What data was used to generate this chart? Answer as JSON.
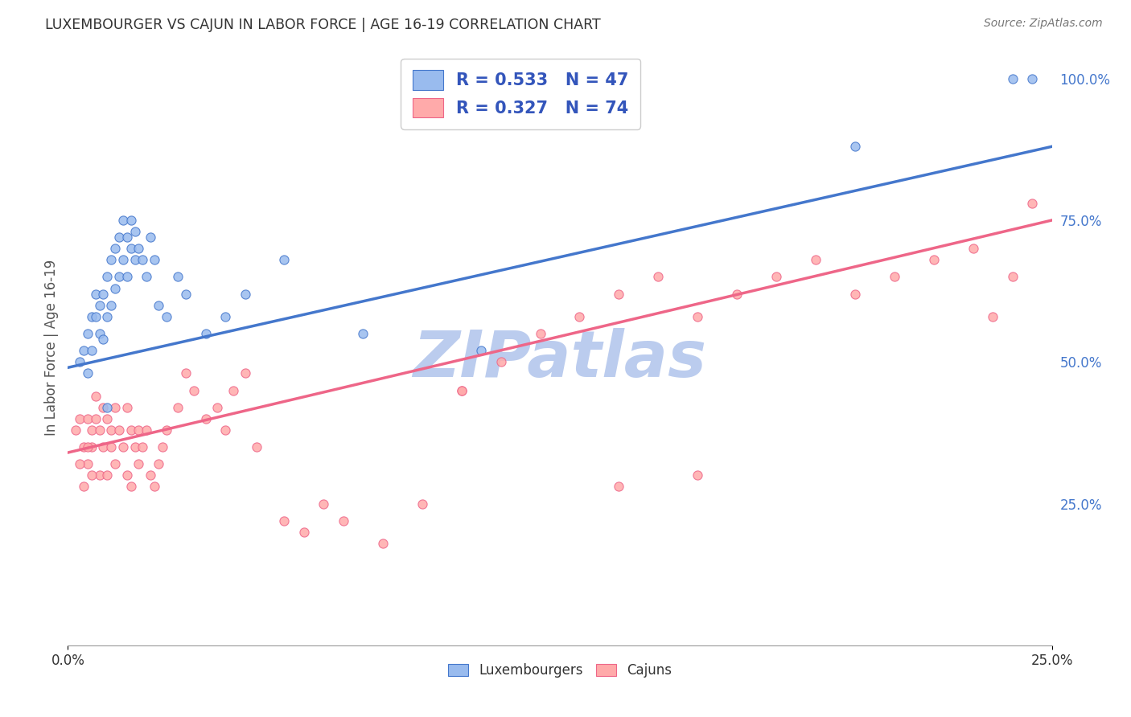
{
  "title": "LUXEMBOURGER VS CAJUN IN LABOR FORCE | AGE 16-19 CORRELATION CHART",
  "source": "Source: ZipAtlas.com",
  "ylabel": "In Labor Force | Age 16-19",
  "xlim": [
    0.0,
    0.25
  ],
  "ylim": [
    0.0,
    1.05
  ],
  "y_ticks_right": [
    0.25,
    0.5,
    0.75,
    1.0
  ],
  "y_tick_labels_right": [
    "25.0%",
    "50.0%",
    "75.0%",
    "100.0%"
  ],
  "blue_R": 0.533,
  "blue_N": 47,
  "pink_R": 0.327,
  "pink_N": 74,
  "blue_color": "#99BBEE",
  "pink_color": "#FFAAAA",
  "blue_line_color": "#4477CC",
  "pink_line_color": "#EE6688",
  "watermark": "ZIPatlas",
  "watermark_color": "#BBCCEE",
  "background_color": "#FFFFFF",
  "grid_color": "#DDDDDD",
  "title_color": "#333333",
  "axis_label_color": "#555555",
  "legend_text_color": "#3355BB",
  "blue_line_intercept": 0.49,
  "blue_line_slope": 1.56,
  "pink_line_intercept": 0.34,
  "pink_line_slope": 1.64,
  "blue_scatter_x": [
    0.003,
    0.004,
    0.005,
    0.005,
    0.006,
    0.006,
    0.007,
    0.007,
    0.008,
    0.008,
    0.009,
    0.009,
    0.01,
    0.01,
    0.011,
    0.011,
    0.012,
    0.012,
    0.013,
    0.013,
    0.014,
    0.014,
    0.015,
    0.015,
    0.016,
    0.016,
    0.017,
    0.017,
    0.018,
    0.019,
    0.02,
    0.021,
    0.022,
    0.023,
    0.025,
    0.028,
    0.03,
    0.035,
    0.04,
    0.045,
    0.055,
    0.075,
    0.105,
    0.2,
    0.24,
    0.245,
    0.01
  ],
  "blue_scatter_y": [
    0.5,
    0.52,
    0.48,
    0.55,
    0.52,
    0.58,
    0.58,
    0.62,
    0.55,
    0.6,
    0.54,
    0.62,
    0.58,
    0.65,
    0.6,
    0.68,
    0.63,
    0.7,
    0.65,
    0.72,
    0.68,
    0.75,
    0.72,
    0.65,
    0.7,
    0.75,
    0.68,
    0.73,
    0.7,
    0.68,
    0.65,
    0.72,
    0.68,
    0.6,
    0.58,
    0.65,
    0.62,
    0.55,
    0.58,
    0.62,
    0.68,
    0.55,
    0.52,
    0.88,
    1.0,
    1.0,
    0.42
  ],
  "pink_scatter_x": [
    0.002,
    0.003,
    0.004,
    0.005,
    0.005,
    0.006,
    0.006,
    0.007,
    0.007,
    0.008,
    0.008,
    0.009,
    0.009,
    0.01,
    0.01,
    0.011,
    0.011,
    0.012,
    0.012,
    0.013,
    0.014,
    0.015,
    0.015,
    0.016,
    0.016,
    0.017,
    0.018,
    0.018,
    0.019,
    0.02,
    0.021,
    0.022,
    0.023,
    0.024,
    0.025,
    0.028,
    0.03,
    0.032,
    0.035,
    0.038,
    0.04,
    0.042,
    0.045,
    0.048,
    0.055,
    0.06,
    0.065,
    0.07,
    0.08,
    0.09,
    0.1,
    0.11,
    0.12,
    0.13,
    0.14,
    0.15,
    0.16,
    0.17,
    0.18,
    0.19,
    0.2,
    0.21,
    0.22,
    0.23,
    0.235,
    0.24,
    0.245,
    0.1,
    0.14,
    0.16,
    0.003,
    0.004,
    0.005,
    0.006
  ],
  "pink_scatter_y": [
    0.38,
    0.4,
    0.35,
    0.4,
    0.32,
    0.38,
    0.35,
    0.4,
    0.44,
    0.38,
    0.3,
    0.42,
    0.35,
    0.4,
    0.3,
    0.35,
    0.38,
    0.32,
    0.42,
    0.38,
    0.35,
    0.3,
    0.42,
    0.38,
    0.28,
    0.35,
    0.32,
    0.38,
    0.35,
    0.38,
    0.3,
    0.28,
    0.32,
    0.35,
    0.38,
    0.42,
    0.48,
    0.45,
    0.4,
    0.42,
    0.38,
    0.45,
    0.48,
    0.35,
    0.22,
    0.2,
    0.25,
    0.22,
    0.18,
    0.25,
    0.45,
    0.5,
    0.55,
    0.58,
    0.62,
    0.65,
    0.58,
    0.62,
    0.65,
    0.68,
    0.62,
    0.65,
    0.68,
    0.7,
    0.58,
    0.65,
    0.78,
    0.45,
    0.28,
    0.3,
    0.32,
    0.28,
    0.35,
    0.3
  ]
}
